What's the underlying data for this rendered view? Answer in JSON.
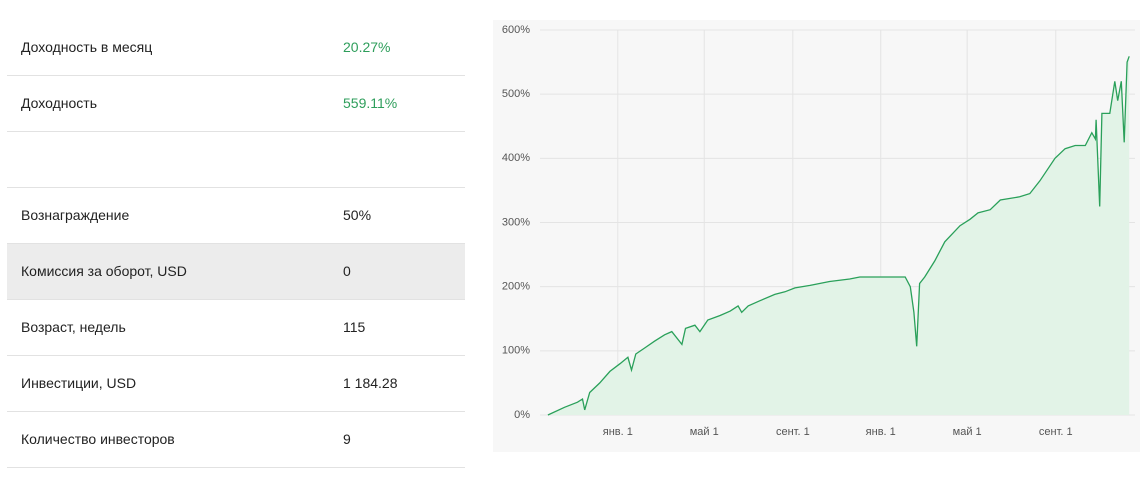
{
  "table": {
    "rows": [
      [
        "Доходность в месяц",
        "20.27%"
      ],
      [
        "Доходность",
        "559.11%"
      ],
      [
        "Вознаграждение",
        "50%"
      ],
      [
        "Комиссия за оборот, USD",
        "0"
      ],
      [
        "Возраст, недель",
        "115"
      ],
      [
        "Инвестиции, USD",
        "1 184.28"
      ],
      [
        "Количество инвесторов",
        "9"
      ]
    ]
  },
  "chart_data": {
    "type": "area",
    "color": "#2aa05a",
    "fill": "#e2f3e7",
    "grid": true,
    "x": [
      -97,
      -74,
      -56,
      -49,
      -46,
      -39,
      -25,
      -11,
      3,
      14,
      19,
      25,
      38,
      51,
      65,
      75,
      89,
      94,
      107,
      114,
      125,
      142,
      156,
      167,
      172,
      181,
      197,
      218,
      232,
      246,
      267,
      294,
      322,
      336,
      364,
      399,
      406,
      411,
      415,
      419,
      426,
      440,
      454,
      475,
      489,
      500,
      517,
      531,
      558,
      572,
      586,
      607,
      621,
      635,
      649,
      658,
      663,
      664,
      669,
      672,
      683,
      690,
      694,
      699,
      703,
      707,
      710
    ],
    "values": [
      0,
      12,
      20,
      25,
      8,
      35,
      50,
      68,
      80,
      90,
      70,
      95,
      105,
      115,
      125,
      130,
      110,
      135,
      140,
      130,
      148,
      155,
      162,
      170,
      160,
      170,
      178,
      188,
      192,
      198,
      202,
      208,
      212,
      215,
      215,
      215,
      200,
      160,
      107,
      205,
      215,
      240,
      270,
      295,
      305,
      315,
      320,
      335,
      340,
      345,
      365,
      400,
      415,
      420,
      420,
      440,
      430,
      460,
      325,
      470,
      470,
      520,
      490,
      520,
      425,
      550,
      559
    ],
    "xlim": [
      -108,
      718
    ],
    "xticks": [
      {
        "value": 0,
        "label": "янв. 1"
      },
      {
        "value": 120,
        "label": "май 1"
      },
      {
        "value": 243,
        "label": "сент. 1"
      },
      {
        "value": 365,
        "label": "янв. 1"
      },
      {
        "value": 485,
        "label": "май 1"
      },
      {
        "value": 608,
        "label": "сент. 1"
      }
    ],
    "ylim": [
      0,
      600
    ],
    "yticks": [
      {
        "value": 0,
        "label": "0%"
      },
      {
        "value": 100,
        "label": "100%"
      },
      {
        "value": 200,
        "label": "200%"
      },
      {
        "value": 300,
        "label": "300%"
      },
      {
        "value": 400,
        "label": "400%"
      },
      {
        "value": 500,
        "label": "500%"
      },
      {
        "value": 600,
        "label": "600%"
      }
    ]
  }
}
